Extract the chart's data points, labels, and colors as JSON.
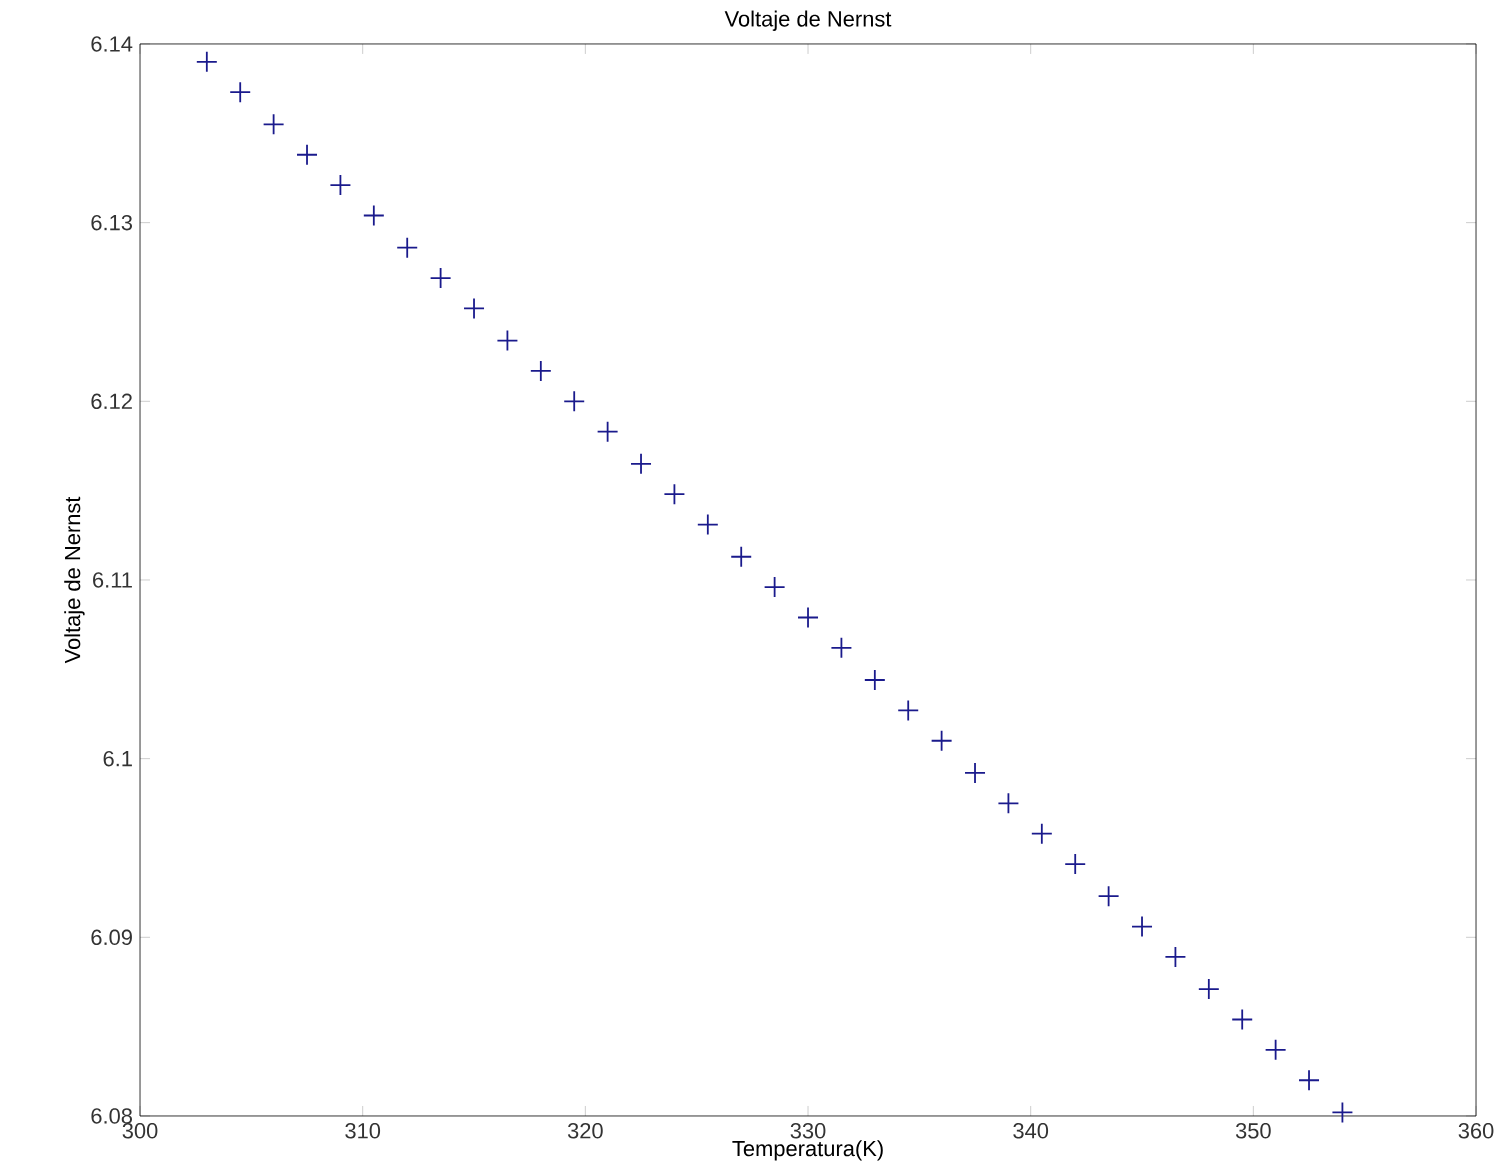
{
  "chart_data": {
    "type": "scatter",
    "title": "Voltaje de Nernst",
    "xlabel": "Temperatura(K)",
    "ylabel": "Voltaje de Nernst",
    "x": [
      303,
      304.5,
      306,
      307.5,
      309,
      310.5,
      312,
      313.5,
      315,
      316.5,
      318,
      319.5,
      321,
      322.5,
      324,
      325.5,
      327,
      328.5,
      330,
      331.5,
      333,
      334.5,
      336,
      337.5,
      339,
      340.5,
      342,
      343.5,
      345,
      346.5,
      348,
      349.5,
      351,
      352.5,
      354
    ],
    "series": [
      {
        "color": "#1a1a8c",
        "values": [
          6.139,
          6.1373,
          6.1355,
          6.1338,
          6.1321,
          6.1304,
          6.1286,
          6.1269,
          6.1252,
          6.1234,
          6.1217,
          6.12,
          6.1183,
          6.1165,
          6.1148,
          6.1131,
          6.1113,
          6.1096,
          6.1079,
          6.1062,
          6.1044,
          6.1027,
          6.101,
          6.0992,
          6.0975,
          6.0958,
          6.0941,
          6.0923,
          6.0906,
          6.0889,
          6.0871,
          6.0854,
          6.0837,
          6.082,
          6.0802
        ]
      }
    ],
    "xlim": [
      300,
      360
    ],
    "ylim": [
      6.08,
      6.14
    ],
    "xticks": [
      300,
      310,
      320,
      330,
      340,
      350,
      360
    ],
    "yticks": [
      6.08,
      6.09,
      6.1,
      6.11,
      6.12,
      6.13,
      6.14
    ],
    "marker": "cross",
    "grid": false
  }
}
